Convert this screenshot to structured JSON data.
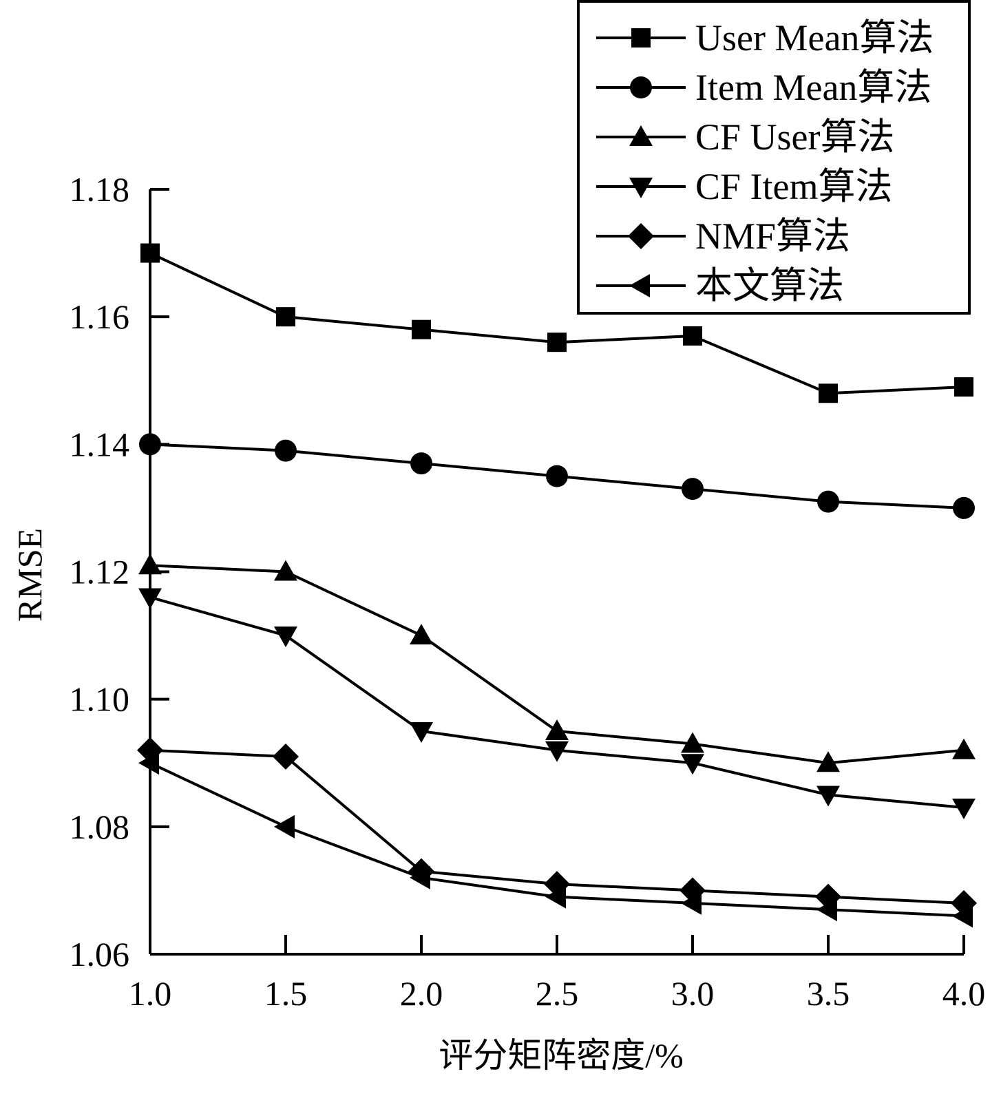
{
  "chart_data": {
    "type": "line",
    "title": "",
    "xlabel": "评分矩阵密度/%",
    "ylabel": "RMSE",
    "x": [
      1.0,
      1.5,
      2.0,
      2.5,
      3.0,
      3.5,
      4.0
    ],
    "x_tick_labels": [
      "1.0",
      "1.5",
      "2.0",
      "2.5",
      "3.0",
      "3.5",
      "4.0"
    ],
    "xlim": [
      1.0,
      4.0
    ],
    "y_ticks": [
      1.06,
      1.08,
      1.1,
      1.12,
      1.14,
      1.16,
      1.18
    ],
    "y_tick_labels": [
      "1.06",
      "1.08",
      "1.10",
      "1.12",
      "1.14",
      "1.16",
      "1.18"
    ],
    "ylim": [
      1.06,
      1.18
    ],
    "grid": false,
    "legend_position": "top-right",
    "series": [
      {
        "name": "User Mean算法",
        "marker": "square",
        "values": [
          1.17,
          1.16,
          1.158,
          1.156,
          1.157,
          1.148,
          1.149
        ]
      },
      {
        "name": "Item Mean算法",
        "marker": "circle",
        "values": [
          1.14,
          1.139,
          1.137,
          1.135,
          1.133,
          1.131,
          1.13
        ]
      },
      {
        "name": "CF User算法",
        "marker": "triangle-up",
        "values": [
          1.121,
          1.12,
          1.11,
          1.095,
          1.093,
          1.09,
          1.092
        ]
      },
      {
        "name": "CF Item算法",
        "marker": "triangle-down",
        "values": [
          1.116,
          1.11,
          1.095,
          1.092,
          1.09,
          1.085,
          1.083
        ]
      },
      {
        "name": "NMF算法",
        "marker": "diamond",
        "values": [
          1.092,
          1.091,
          1.073,
          1.071,
          1.07,
          1.069,
          1.068
        ]
      },
      {
        "name": "本文算法",
        "marker": "triangle-left",
        "values": [
          1.09,
          1.08,
          1.072,
          1.069,
          1.068,
          1.067,
          1.066
        ]
      }
    ]
  }
}
